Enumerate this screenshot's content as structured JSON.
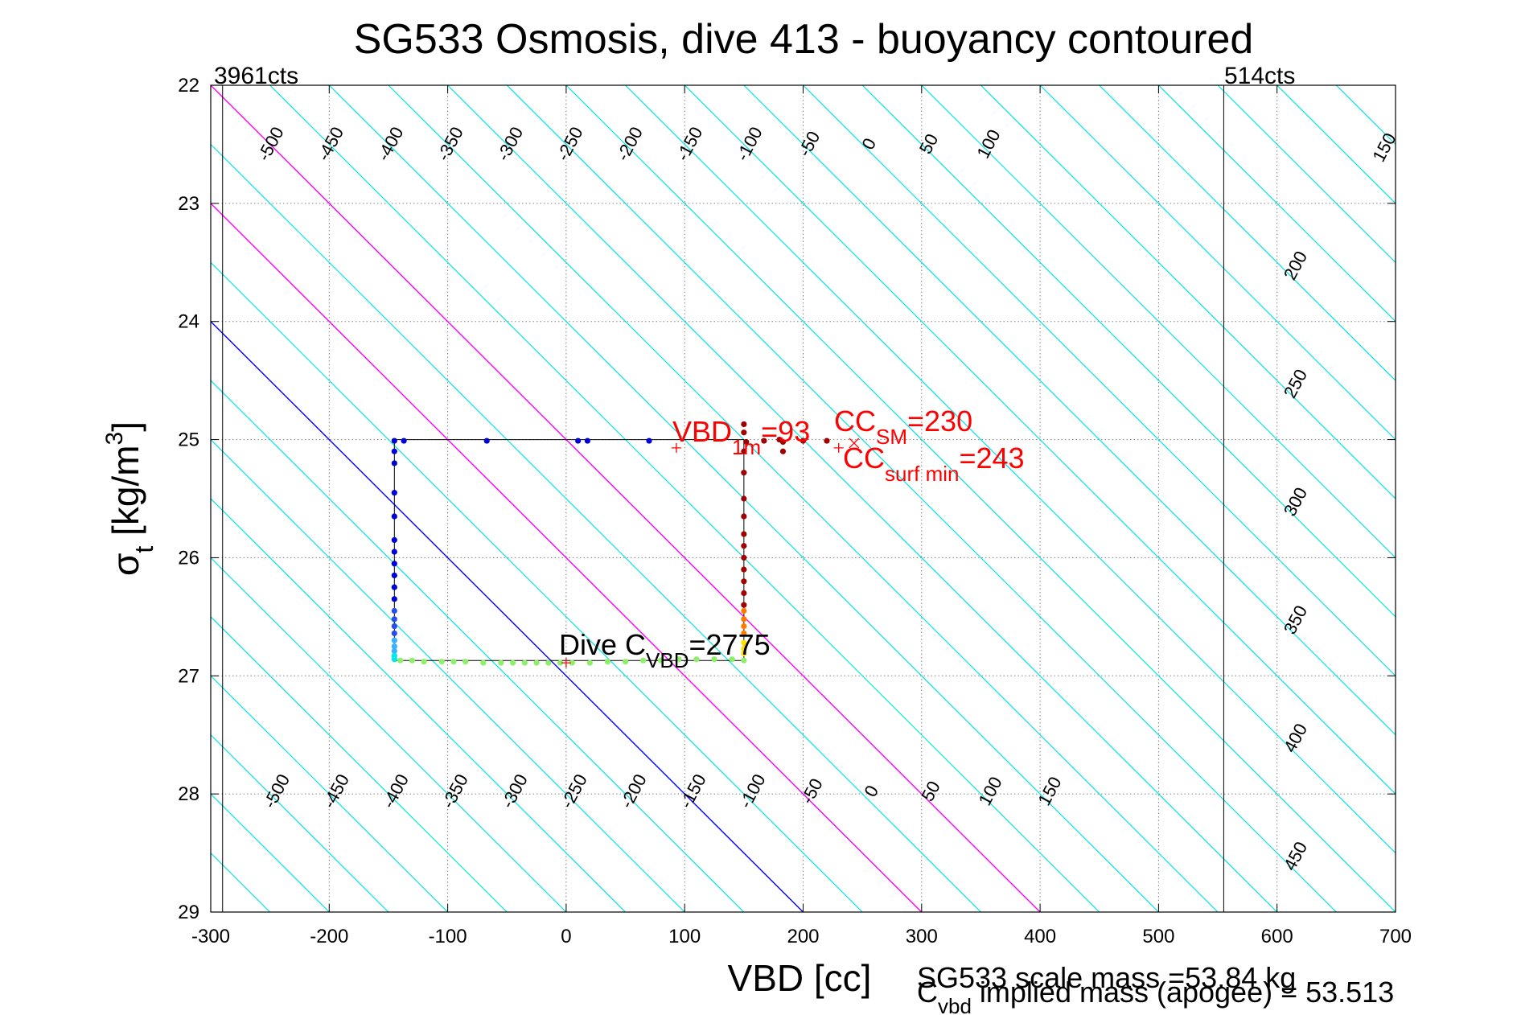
{
  "chart_data": {
    "type": "scatter",
    "title": "SG533 Osmosis, dive 413 - buoyancy contoured",
    "xlabel": "VBD [cc]",
    "ylabel_main": "σ",
    "ylabel_sub": "t",
    "ylabel_rest": " [kg/m",
    "ylabel_sup": "3",
    "ylabel_end": "]",
    "xlim": [
      -300,
      700
    ],
    "ylim": [
      22,
      29
    ],
    "y_reversed": true,
    "grid": true,
    "xticks": [
      -300,
      -200,
      -100,
      0,
      100,
      200,
      300,
      400,
      500,
      600,
      700
    ],
    "yticks": [
      22,
      23,
      24,
      25,
      26,
      27,
      28,
      29
    ],
    "limits": {
      "left": {
        "x": -290,
        "label": "3961cts"
      },
      "right": {
        "x": 555,
        "label": "514cts"
      }
    },
    "contour_slope_cc_per_sigma": 100,
    "contour_top_labels": [
      "-500",
      "-450",
      "-400",
      "-350",
      "-300",
      "-250",
      "-200",
      "-150",
      "-100",
      "-50",
      "0",
      "50",
      "100",
      "150",
      "200",
      "250",
      "300",
      "350",
      "400",
      "450"
    ],
    "contour_bottom_labels": [
      "-500",
      "-450",
      "-400",
      "-350",
      "-300",
      "-250",
      "-200",
      "-150",
      "-100",
      "-50",
      "0",
      "50",
      "100",
      "150"
    ],
    "contours": {
      "cyan_color": "#00e5e5",
      "zero_color": "#0000ff",
      "magenta_color": "#ff00ff",
      "zero_line": {
        "x_at_29": 200
      },
      "magenta_lines": [
        {
          "x_at_29": 300
        },
        {
          "x_at_29": 400
        }
      ]
    },
    "profile_path": [
      [
        -145,
        25.0
      ],
      [
        150,
        25.0
      ],
      [
        150,
        26.87
      ],
      [
        -145,
        26.87
      ],
      [
        -145,
        25.0
      ]
    ],
    "series": [
      {
        "color": "#0000d8",
        "points": [
          [
            -145,
            25.01
          ],
          [
            -137,
            25.01
          ],
          [
            -67,
            25.01
          ],
          [
            10,
            25.01
          ],
          [
            18,
            25.01
          ],
          [
            70,
            25.01
          ],
          [
            -145,
            25.1
          ],
          [
            -145,
            25.2
          ],
          [
            -145,
            25.45
          ],
          [
            -145,
            25.65
          ],
          [
            -145,
            25.85
          ],
          [
            -145,
            25.95
          ],
          [
            -145,
            26.05
          ],
          [
            -145,
            26.15
          ],
          [
            -145,
            26.25
          ],
          [
            -145,
            26.35
          ]
        ]
      },
      {
        "color": "#2a4df0",
        "points": [
          [
            -145,
            26.45
          ],
          [
            -145,
            26.52
          ],
          [
            -145,
            26.58
          ],
          [
            -145,
            26.64
          ]
        ]
      },
      {
        "color": "#3ab0ff",
        "points": [
          [
            -145,
            26.7
          ],
          [
            -145,
            26.75
          ],
          [
            -145,
            26.79
          ]
        ]
      },
      {
        "color": "#00e8e8",
        "points": [
          [
            -145,
            26.83
          ],
          [
            -145,
            26.86
          ]
        ]
      },
      {
        "color": "#8ef06a",
        "points": [
          [
            -140,
            26.87
          ],
          [
            -130,
            26.87
          ],
          [
            -120,
            26.88
          ],
          [
            -105,
            26.88
          ],
          [
            -95,
            26.88
          ],
          [
            -85,
            26.88
          ],
          [
            -70,
            26.89
          ],
          [
            -55,
            26.89
          ],
          [
            -45,
            26.89
          ],
          [
            -35,
            26.89
          ],
          [
            -25,
            26.89
          ],
          [
            -15,
            26.89
          ],
          [
            -5,
            26.89
          ],
          [
            5,
            26.89
          ],
          [
            20,
            26.89
          ],
          [
            35,
            26.88
          ],
          [
            50,
            26.88
          ],
          [
            65,
            26.87
          ],
          [
            80,
            26.87
          ],
          [
            95,
            26.86
          ],
          [
            110,
            26.86
          ],
          [
            125,
            26.86
          ],
          [
            140,
            26.86
          ],
          [
            150,
            26.87
          ]
        ]
      },
      {
        "color": "#ffe000",
        "points": [
          [
            150,
            26.72
          ],
          [
            150,
            26.77
          ],
          [
            150,
            26.81
          ]
        ]
      },
      {
        "color": "#ff7a00",
        "points": [
          [
            150,
            26.45
          ],
          [
            150,
            26.52
          ],
          [
            150,
            26.58
          ],
          [
            150,
            26.64
          ]
        ]
      },
      {
        "color": "#a00000",
        "points": [
          [
            150,
            24.87
          ],
          [
            150,
            24.94
          ],
          [
            152,
            25.02
          ],
          [
            150,
            25.1
          ],
          [
            150,
            25.28
          ],
          [
            150,
            25.5
          ],
          [
            150,
            25.65
          ],
          [
            150,
            25.8
          ],
          [
            150,
            25.9
          ],
          [
            150,
            26.0
          ],
          [
            150,
            26.1
          ],
          [
            150,
            26.2
          ],
          [
            150,
            26.3
          ],
          [
            150,
            26.4
          ],
          [
            167,
            25.01
          ],
          [
            180,
            25.0
          ],
          [
            183,
            25.02
          ],
          [
            183,
            25.1
          ],
          [
            200,
            25.01
          ],
          [
            220,
            25.01
          ]
        ]
      }
    ],
    "markers": [
      {
        "x": 93,
        "y": 25.07,
        "symbol": "+",
        "color": "#ff0000"
      },
      {
        "x": 230,
        "y": 25.07,
        "symbol": "+",
        "color": "#ff0000"
      },
      {
        "x": 243,
        "y": 25.03,
        "symbol": "x",
        "color": "#ff0000"
      },
      {
        "x": 0,
        "y": 26.89,
        "symbol": "+",
        "color": "#ff0000"
      }
    ],
    "annotations": {
      "vbd1m": {
        "main": "VBD",
        "sub": "1m",
        "rest": "=93",
        "color": "#ff0000"
      },
      "ccsm": {
        "main": "CC",
        "sub": "SM",
        "rest": "=230",
        "color": "#ff0000"
      },
      "ccsurf": {
        "main": "CC",
        "sub": "surf min",
        "rest": "=243",
        "color": "#ff0000"
      },
      "dive": {
        "main": "Dive C",
        "sub": "VBD",
        "rest": "=2775",
        "color": "#000000"
      }
    },
    "footer": {
      "line1": "SG533 scale mass =53.84 kg",
      "line2_main": "C",
      "line2_sub": "vbd",
      "line2_rest": " implied mass (apogee) = 53.513"
    }
  }
}
